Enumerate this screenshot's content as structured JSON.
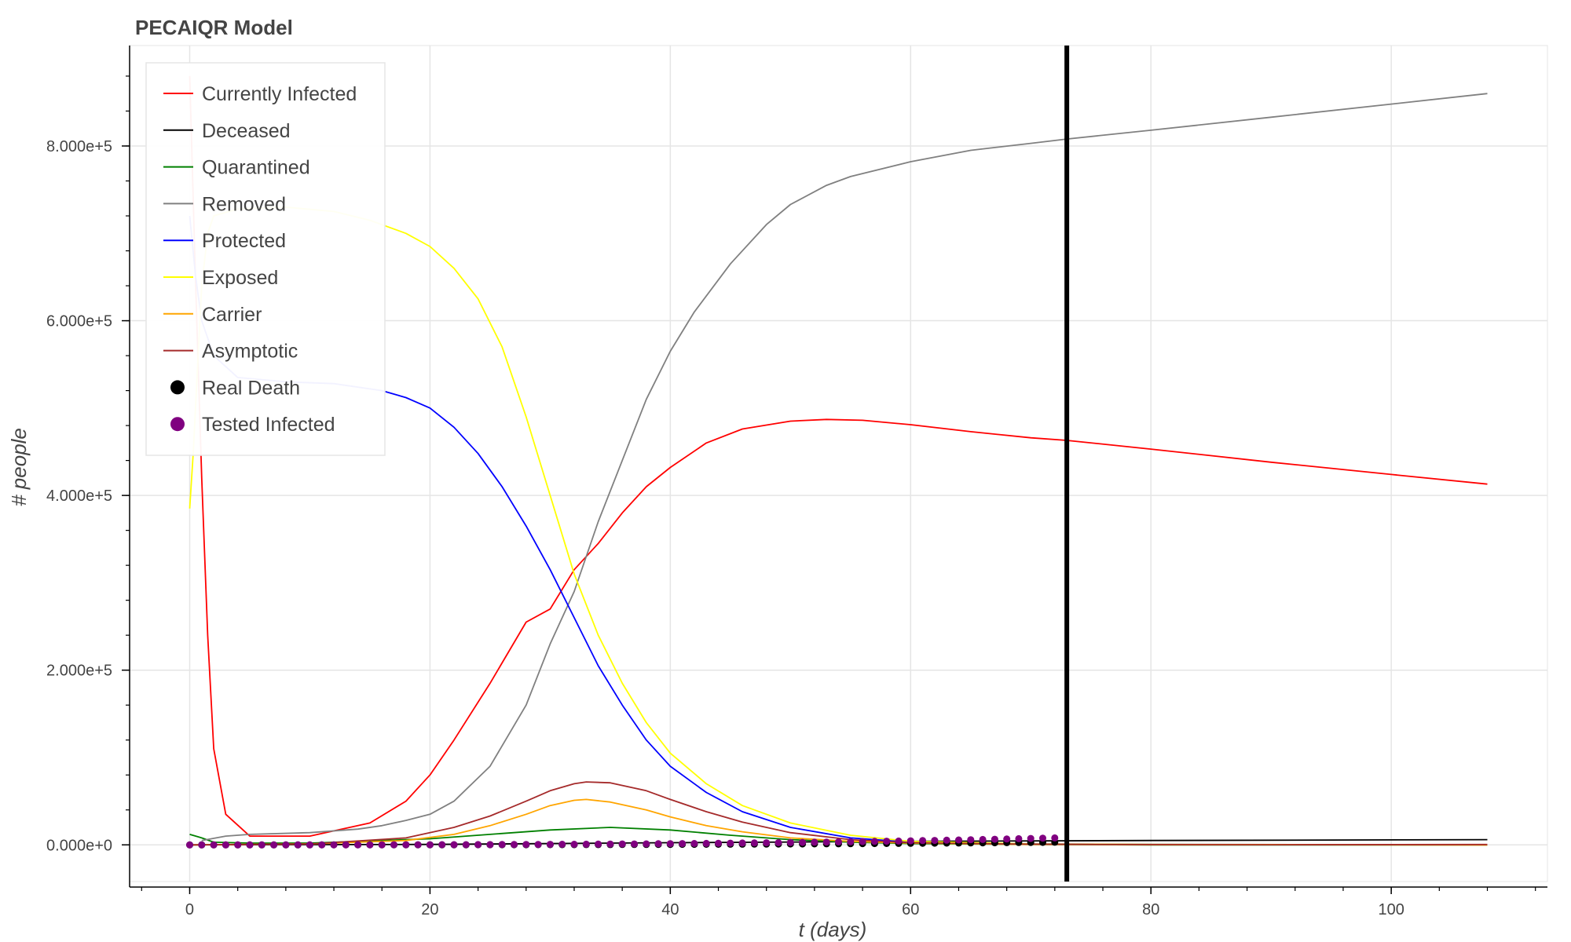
{
  "chart_data": {
    "type": "line",
    "title": "PECAIQR Model",
    "xlabel": "t (days)",
    "ylabel": "# people",
    "xlim": [
      -5,
      113
    ],
    "ylim": [
      -42000,
      915000
    ],
    "x_ticks": [
      0,
      20,
      40,
      60,
      80,
      100
    ],
    "x_tick_labels": [
      "0",
      "20",
      "40",
      "60",
      "80",
      "100"
    ],
    "y_ticks": [
      0,
      200000,
      400000,
      600000,
      800000
    ],
    "y_tick_labels": [
      "0.000e+0",
      "2.000e+5",
      "4.000e+5",
      "6.000e+5",
      "8.000e+5"
    ],
    "grid": true,
    "legend_position": "top-left",
    "vline": {
      "x": 73,
      "color": "#000000"
    },
    "series": [
      {
        "name": "Currently Infected",
        "kind": "line",
        "color": "#ff0000",
        "points": [
          [
            0,
            880000
          ],
          [
            0.5,
            640000
          ],
          [
            1,
            420000
          ],
          [
            1.5,
            240000
          ],
          [
            2,
            110000
          ],
          [
            3,
            35000
          ],
          [
            5,
            10000
          ],
          [
            10,
            10000
          ],
          [
            15,
            25000
          ],
          [
            18,
            50000
          ],
          [
            20,
            80000
          ],
          [
            22,
            120000
          ],
          [
            25,
            185000
          ],
          [
            28,
            255000
          ],
          [
            30,
            270000
          ],
          [
            32,
            315000
          ],
          [
            34,
            345000
          ],
          [
            36,
            380000
          ],
          [
            38,
            410000
          ],
          [
            40,
            432000
          ],
          [
            43,
            460000
          ],
          [
            46,
            476000
          ],
          [
            50,
            485000
          ],
          [
            53,
            487000
          ],
          [
            56,
            486000
          ],
          [
            60,
            481000
          ],
          [
            65,
            473000
          ],
          [
            70,
            466000
          ],
          [
            73,
            463000
          ],
          [
            80,
            453000
          ],
          [
            90,
            438000
          ],
          [
            100,
            424000
          ],
          [
            108,
            413000
          ]
        ]
      },
      {
        "name": "Deceased",
        "kind": "line",
        "color": "#000000",
        "points": [
          [
            0,
            0
          ],
          [
            20,
            500
          ],
          [
            40,
            2500
          ],
          [
            60,
            4000
          ],
          [
            80,
            5000
          ],
          [
            108,
            6000
          ]
        ]
      },
      {
        "name": "Quarantined",
        "kind": "line",
        "color": "#008000",
        "points": [
          [
            0,
            12000
          ],
          [
            1,
            8000
          ],
          [
            2,
            3000
          ],
          [
            5,
            2000
          ],
          [
            10,
            2000
          ],
          [
            20,
            7000
          ],
          [
            25,
            12000
          ],
          [
            30,
            17000
          ],
          [
            35,
            20000
          ],
          [
            40,
            17000
          ],
          [
            45,
            11000
          ],
          [
            50,
            6000
          ],
          [
            55,
            3000
          ],
          [
            60,
            1500
          ],
          [
            70,
            500
          ],
          [
            80,
            0
          ],
          [
            108,
            0
          ]
        ]
      },
      {
        "name": "Removed",
        "kind": "line",
        "color": "#808080",
        "points": [
          [
            1,
            5000
          ],
          [
            3,
            10000
          ],
          [
            5,
            12000
          ],
          [
            10,
            14000
          ],
          [
            14,
            18000
          ],
          [
            16,
            22000
          ],
          [
            18,
            28000
          ],
          [
            20,
            35000
          ],
          [
            22,
            50000
          ],
          [
            25,
            90000
          ],
          [
            28,
            160000
          ],
          [
            30,
            230000
          ],
          [
            32,
            290000
          ],
          [
            34,
            370000
          ],
          [
            36,
            440000
          ],
          [
            38,
            510000
          ],
          [
            40,
            565000
          ],
          [
            42,
            610000
          ],
          [
            45,
            665000
          ],
          [
            48,
            710000
          ],
          [
            50,
            733000
          ],
          [
            53,
            755000
          ],
          [
            55,
            765000
          ],
          [
            60,
            782000
          ],
          [
            65,
            795000
          ],
          [
            70,
            803000
          ],
          [
            73,
            808000
          ],
          [
            80,
            818000
          ],
          [
            90,
            833000
          ],
          [
            100,
            848000
          ],
          [
            108,
            860000
          ]
        ]
      },
      {
        "name": "Protected",
        "kind": "line",
        "color": "#0000ff",
        "points": [
          [
            0,
            720000
          ],
          [
            0.5,
            650000
          ],
          [
            1,
            600000
          ],
          [
            2,
            560000
          ],
          [
            4,
            535000
          ],
          [
            8,
            530000
          ],
          [
            12,
            528000
          ],
          [
            16,
            520000
          ],
          [
            18,
            512000
          ],
          [
            20,
            500000
          ],
          [
            22,
            478000
          ],
          [
            24,
            448000
          ],
          [
            26,
            410000
          ],
          [
            28,
            365000
          ],
          [
            30,
            315000
          ],
          [
            32,
            260000
          ],
          [
            34,
            205000
          ],
          [
            36,
            160000
          ],
          [
            38,
            120000
          ],
          [
            40,
            90000
          ],
          [
            43,
            60000
          ],
          [
            46,
            38000
          ],
          [
            50,
            20000
          ],
          [
            55,
            8000
          ],
          [
            60,
            3000
          ],
          [
            70,
            1000
          ],
          [
            80,
            500
          ],
          [
            108,
            0
          ]
        ]
      },
      {
        "name": "Exposed",
        "kind": "line",
        "color": "#ffff00",
        "points": [
          [
            0,
            385000
          ],
          [
            0.3,
            450000
          ],
          [
            0.7,
            560000
          ],
          [
            1,
            640000
          ],
          [
            1.5,
            700000
          ],
          [
            2,
            720000
          ],
          [
            4,
            728000
          ],
          [
            8,
            730000
          ],
          [
            12,
            725000
          ],
          [
            15,
            715000
          ],
          [
            18,
            700000
          ],
          [
            20,
            685000
          ],
          [
            22,
            660000
          ],
          [
            24,
            625000
          ],
          [
            26,
            570000
          ],
          [
            28,
            490000
          ],
          [
            30,
            400000
          ],
          [
            32,
            310000
          ],
          [
            34,
            240000
          ],
          [
            36,
            185000
          ],
          [
            38,
            140000
          ],
          [
            40,
            105000
          ],
          [
            43,
            70000
          ],
          [
            46,
            45000
          ],
          [
            50,
            25000
          ],
          [
            55,
            11000
          ],
          [
            60,
            4000
          ],
          [
            70,
            1000
          ],
          [
            80,
            500
          ],
          [
            108,
            0
          ]
        ]
      },
      {
        "name": "Carrier",
        "kind": "line",
        "color": "#ffa500",
        "points": [
          [
            0,
            0
          ],
          [
            10,
            1000
          ],
          [
            18,
            5000
          ],
          [
            22,
            12000
          ],
          [
            25,
            22000
          ],
          [
            28,
            35000
          ],
          [
            30,
            45000
          ],
          [
            32,
            51000
          ],
          [
            33,
            52000
          ],
          [
            35,
            49000
          ],
          [
            38,
            40000
          ],
          [
            40,
            32000
          ],
          [
            43,
            22000
          ],
          [
            46,
            15000
          ],
          [
            50,
            8000
          ],
          [
            55,
            4000
          ],
          [
            60,
            2000
          ],
          [
            70,
            500
          ],
          [
            80,
            200
          ],
          [
            108,
            0
          ]
        ]
      },
      {
        "name": "Asymptotic",
        "kind": "line",
        "color": "#a52a2a",
        "points": [
          [
            0,
            0
          ],
          [
            10,
            1000
          ],
          [
            18,
            8000
          ],
          [
            22,
            20000
          ],
          [
            25,
            33000
          ],
          [
            28,
            50000
          ],
          [
            30,
            62000
          ],
          [
            32,
            70000
          ],
          [
            33,
            72000
          ],
          [
            35,
            71000
          ],
          [
            38,
            62000
          ],
          [
            40,
            52000
          ],
          [
            43,
            38000
          ],
          [
            46,
            26000
          ],
          [
            50,
            14000
          ],
          [
            55,
            6000
          ],
          [
            60,
            2500
          ],
          [
            70,
            800
          ],
          [
            80,
            300
          ],
          [
            90,
            100
          ],
          [
            108,
            400
          ]
        ]
      },
      {
        "name": "Real Death",
        "kind": "scatter",
        "color": "#000000",
        "x_range": [
          0,
          72,
          1
        ],
        "y_start": 0,
        "y_end": 3000
      },
      {
        "name": "Tested Infected",
        "kind": "scatter",
        "color": "#800080",
        "x_range": [
          0,
          72,
          1
        ],
        "y_start": 0,
        "y_end": 8000
      }
    ]
  }
}
